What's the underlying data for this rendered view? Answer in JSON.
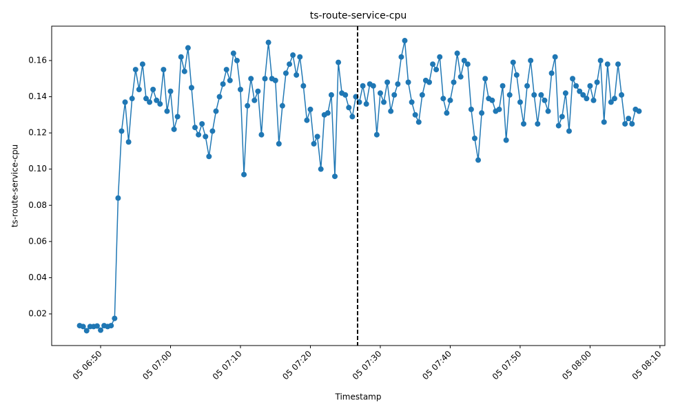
{
  "chart_data": {
    "type": "line",
    "title": "ts-route-service-cpu",
    "x_label": "Timestamp",
    "y_label": "ts-route-service-cpu",
    "color": "#1f77b4",
    "vline": 446.75,
    "vline_color": "#000000",
    "xlim": [
      403,
      490.7
    ],
    "ylim": [
      0.0025,
      0.179
    ],
    "xticks": [
      {
        "value": 410,
        "label": "05 06:50"
      },
      {
        "value": 420,
        "label": "05 07:00"
      },
      {
        "value": 430,
        "label": "05 07:10"
      },
      {
        "value": 440,
        "label": "05 07:20"
      },
      {
        "value": 450,
        "label": "05 07:30"
      },
      {
        "value": 460,
        "label": "05 07:40"
      },
      {
        "value": 470,
        "label": "05 07:50"
      },
      {
        "value": 480,
        "label": "05 08:00"
      },
      {
        "value": 490,
        "label": "05 08:10"
      }
    ],
    "yticks": [
      0.02,
      0.04,
      0.06,
      0.08,
      {
        "value": 0.1,
        "label": "0.10"
      },
      0.12,
      0.14,
      0.16
    ],
    "x": [
      407,
      407.5,
      408,
      408.5,
      409,
      409.5,
      410,
      410.5,
      411,
      411.5,
      412,
      412.5,
      413,
      413.5,
      414,
      414.5,
      415,
      415.5,
      416,
      416.5,
      417,
      417.5,
      418,
      418.5,
      419,
      419.5,
      420,
      420.5,
      421,
      421.5,
      422,
      422.5,
      423,
      423.5,
      424,
      424.5,
      425,
      425.5,
      426,
      426.5,
      427,
      427.5,
      428,
      428.5,
      429,
      429.5,
      430,
      430.5,
      431,
      431.5,
      432,
      432.5,
      433,
      433.5,
      434,
      434.5,
      435,
      435.5,
      436,
      436.5,
      437,
      437.5,
      438,
      438.5,
      439,
      439.5,
      440,
      440.5,
      441,
      441.5,
      442,
      442.5,
      443,
      443.5,
      444,
      444.5,
      445,
      445.5,
      446,
      446.5,
      447,
      447.5,
      448,
      448.5,
      449,
      449.5,
      450,
      450.5,
      451,
      451.5,
      452,
      452.5,
      453,
      453.5,
      454,
      454.5,
      455,
      455.5,
      456,
      456.5,
      457,
      457.5,
      458,
      458.5,
      459,
      459.5,
      460,
      460.5,
      461,
      461.5,
      462,
      462.5,
      463,
      463.5,
      464,
      464.5,
      465,
      465.5,
      466,
      466.5,
      467,
      467.5,
      468,
      468.5,
      469,
      469.5,
      470,
      470.5,
      471,
      471.5,
      472,
      472.5,
      473,
      473.5,
      474,
      474.5,
      475,
      475.5,
      476,
      476.5,
      477,
      477.5,
      478,
      478.5,
      479,
      479.5,
      480,
      480.5,
      481,
      481.5,
      482,
      482.5,
      483,
      483.5,
      484,
      484.5,
      485,
      485.5,
      486,
      486.5,
      487
    ],
    "values": [
      0.0135,
      0.013,
      0.0107,
      0.013,
      0.013,
      0.0133,
      0.011,
      0.0135,
      0.013,
      0.0135,
      0.0175,
      0.084,
      0.121,
      0.137,
      0.115,
      0.139,
      0.155,
      0.144,
      0.158,
      0.139,
      0.137,
      0.144,
      0.138,
      0.136,
      0.155,
      0.132,
      0.143,
      0.122,
      0.129,
      0.162,
      0.154,
      0.167,
      0.145,
      0.123,
      0.119,
      0.125,
      0.118,
      0.107,
      0.121,
      0.132,
      0.14,
      0.147,
      0.155,
      0.149,
      0.164,
      0.16,
      0.144,
      0.097,
      0.135,
      0.15,
      0.138,
      0.143,
      0.119,
      0.15,
      0.17,
      0.15,
      0.149,
      0.114,
      0.135,
      0.153,
      0.158,
      0.163,
      0.152,
      0.162,
      0.146,
      0.127,
      0.133,
      0.114,
      0.118,
      0.1,
      0.13,
      0.131,
      0.141,
      0.096,
      0.159,
      0.142,
      0.141,
      0.134,
      0.129,
      0.14,
      0.137,
      0.146,
      0.136,
      0.147,
      0.146,
      0.119,
      0.142,
      0.137,
      0.148,
      0.132,
      0.141,
      0.147,
      0.162,
      0.171,
      0.148,
      0.137,
      0.13,
      0.126,
      0.141,
      0.149,
      0.148,
      0.158,
      0.155,
      0.162,
      0.139,
      0.131,
      0.138,
      0.148,
      0.164,
      0.151,
      0.16,
      0.158,
      0.133,
      0.117,
      0.105,
      0.131,
      0.15,
      0.139,
      0.138,
      0.132,
      0.133,
      0.146,
      0.116,
      0.141,
      0.159,
      0.152,
      0.137,
      0.125,
      0.146,
      0.16,
      0.141,
      0.125,
      0.141,
      0.138,
      0.132,
      0.153,
      0.162,
      0.124,
      0.129,
      0.142,
      0.121,
      0.15,
      0.146,
      0.143,
      0.141,
      0.139,
      0.146,
      0.138,
      0.148,
      0.16,
      0.126,
      0.158,
      0.137,
      0.139,
      0.158,
      0.141,
      0.125,
      0.128,
      0.125,
      0.133,
      0.132
    ]
  }
}
